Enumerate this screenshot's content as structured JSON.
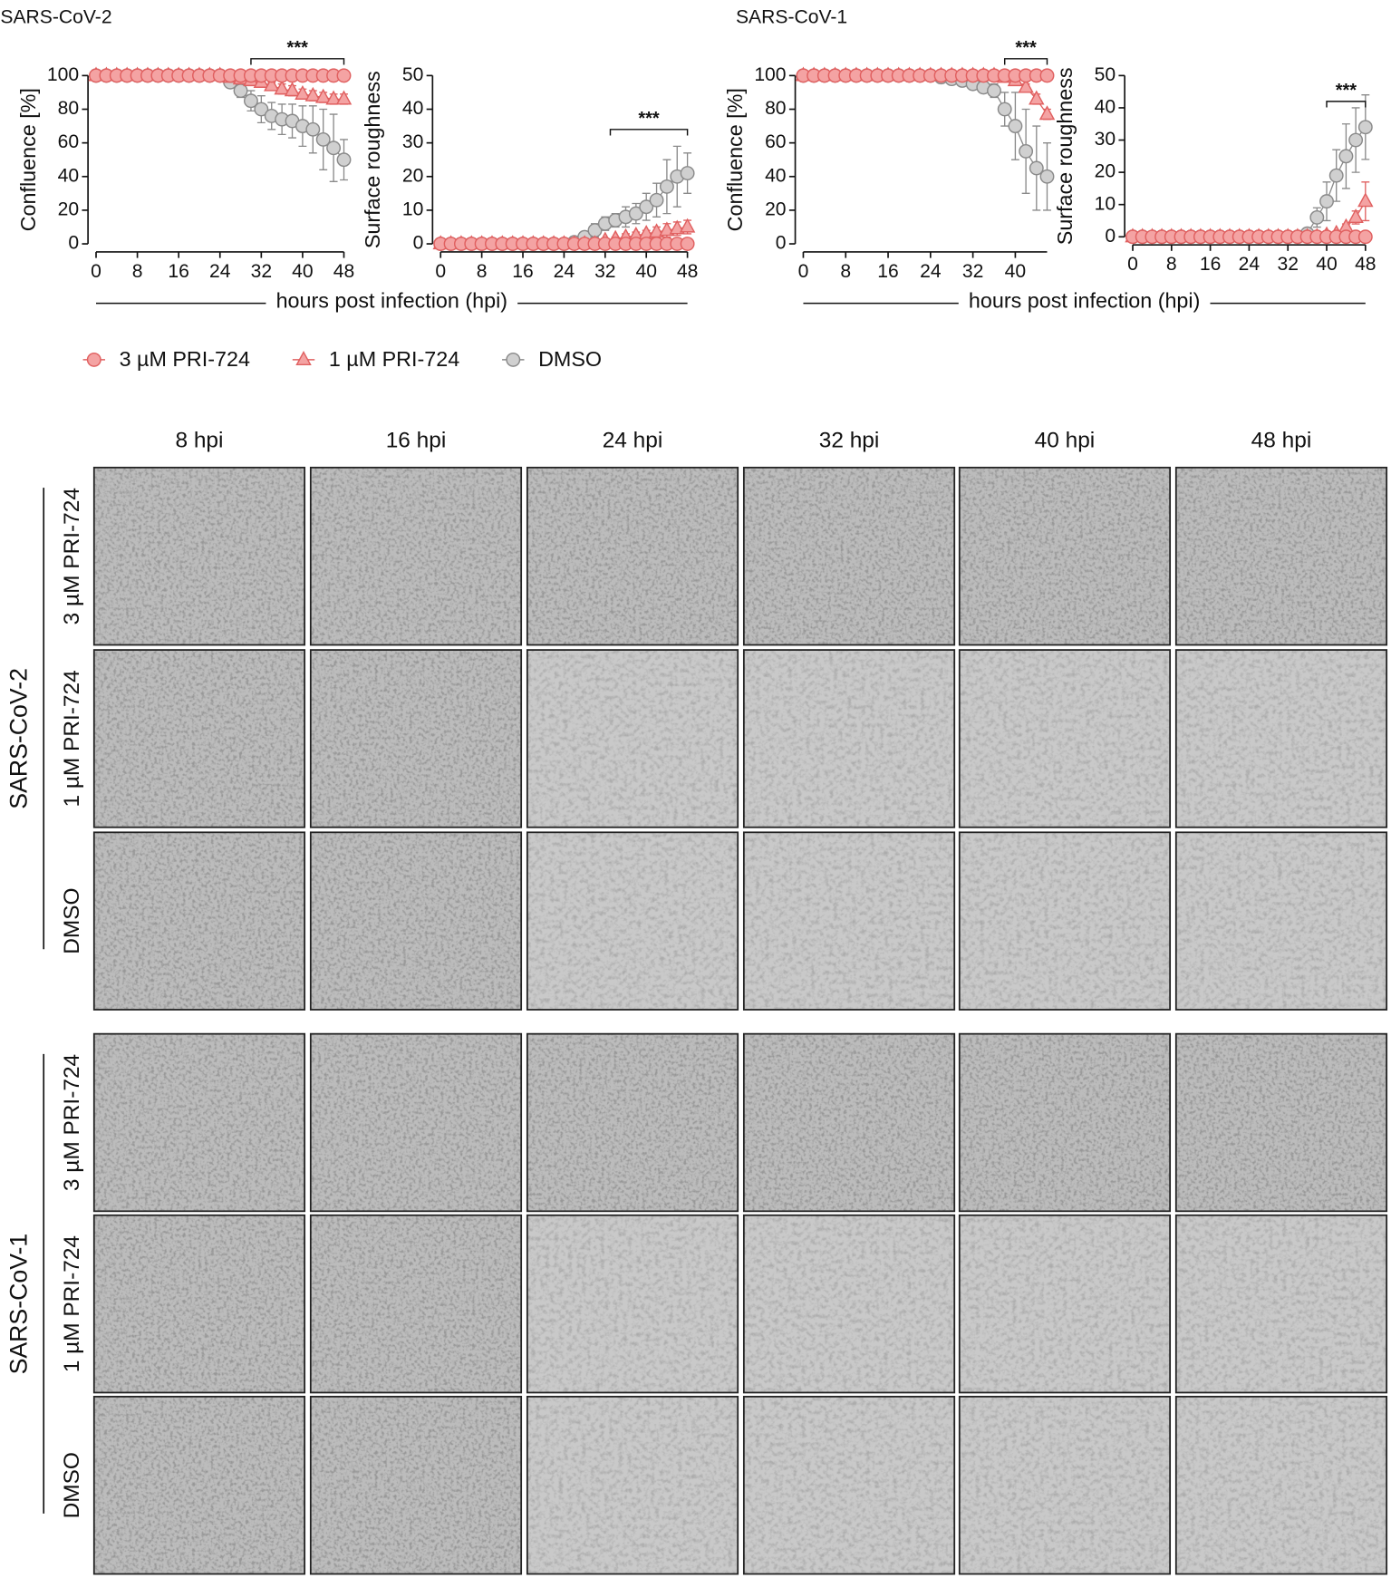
{
  "chart_data": [
    {
      "type": "line",
      "title": "SARS-CoV-2",
      "ylabel": "Confluence [%]",
      "xlabel": "hours post infection (hpi)",
      "xlim": [
        0,
        48
      ],
      "xticks": [
        0,
        8,
        16,
        24,
        32,
        40,
        48
      ],
      "ylim": [
        0,
        100
      ],
      "yticks": [
        0,
        20,
        40,
        60,
        80,
        100
      ],
      "x": [
        0,
        2,
        4,
        6,
        8,
        10,
        12,
        14,
        16,
        18,
        20,
        22,
        24,
        26,
        28,
        30,
        32,
        34,
        36,
        38,
        40,
        42,
        44,
        46,
        48
      ],
      "series": [
        {
          "values": [
            100,
            100,
            100,
            100,
            100,
            100,
            100,
            100,
            100,
            100,
            100,
            100,
            100,
            100,
            100,
            100,
            100,
            100,
            100,
            100,
            100,
            100,
            100,
            100,
            100
          ]
        },
        {
          "values": [
            100,
            100,
            100,
            100,
            100,
            100,
            100,
            100,
            100,
            100,
            100,
            100,
            100,
            99,
            98,
            97,
            96,
            94,
            92,
            91,
            89,
            88,
            87,
            86,
            86
          ],
          "errors": [
            0,
            0,
            0,
            0,
            0,
            0,
            0,
            0,
            0,
            0,
            0,
            0,
            0,
            1,
            1,
            2,
            2,
            2,
            3,
            3,
            3,
            3,
            3,
            3,
            3
          ]
        },
        {
          "values": [
            100,
            100,
            100,
            100,
            100,
            100,
            100,
            100,
            100,
            100,
            100,
            100,
            100,
            96,
            91,
            85,
            80,
            76,
            74,
            73,
            70,
            68,
            62,
            57,
            50
          ],
          "errors": [
            0,
            0,
            0,
            0,
            0,
            0,
            0,
            0,
            0,
            0,
            0,
            0,
            0,
            2,
            4,
            6,
            8,
            8,
            9,
            10,
            12,
            14,
            18,
            20,
            12
          ]
        }
      ],
      "bracket": {
        "label": "***",
        "x": [
          30,
          48
        ],
        "y": 110
      }
    },
    {
      "type": "line",
      "ylabel": "Surface roughness",
      "xlim": [
        0,
        48
      ],
      "xticks": [
        0,
        8,
        16,
        24,
        32,
        40,
        48
      ],
      "ylim": [
        0,
        50
      ],
      "yticks": [
        0,
        10,
        20,
        30,
        40,
        50
      ],
      "x": [
        0,
        2,
        4,
        6,
        8,
        10,
        12,
        14,
        16,
        18,
        20,
        22,
        24,
        26,
        28,
        30,
        32,
        34,
        36,
        38,
        40,
        42,
        44,
        46,
        48
      ],
      "series": [
        {
          "values": [
            0,
            0,
            0,
            0,
            0,
            0,
            0,
            0,
            0,
            0,
            0,
            0,
            0,
            0,
            0,
            0,
            0,
            0,
            0,
            0,
            0,
            0,
            0,
            0,
            0
          ]
        },
        {
          "values": [
            0,
            0,
            0,
            0,
            0,
            0,
            0,
            0,
            0,
            0,
            0,
            0,
            0,
            0,
            0,
            0,
            1,
            1.5,
            2,
            2.5,
            3,
            3.5,
            4,
            4.5,
            5
          ],
          "errors": [
            0,
            0,
            0,
            0,
            0,
            0,
            0,
            0,
            0,
            0,
            0,
            0,
            0,
            0,
            0,
            0,
            0.5,
            0.5,
            1,
            1,
            1,
            1.5,
            2,
            2,
            2
          ]
        },
        {
          "values": [
            0,
            0,
            0,
            0,
            0,
            0,
            0,
            0,
            0,
            0,
            0,
            0,
            0,
            0.5,
            2,
            4,
            6,
            7,
            8,
            9,
            11,
            13,
            17,
            20,
            21
          ],
          "errors": [
            0,
            0,
            0,
            0,
            0,
            0,
            0,
            0,
            0,
            0,
            0,
            0,
            0,
            0.3,
            1,
            2,
            2,
            2,
            3,
            3,
            4,
            5,
            8,
            9,
            6
          ]
        }
      ],
      "bracket": {
        "label": "***",
        "x": [
          33,
          48
        ],
        "y": 34
      }
    },
    {
      "type": "line",
      "title": "SARS-CoV-1",
      "ylabel": "Confluence [%]",
      "xlabel": "hours post infection (hpi)",
      "xlim": [
        0,
        46
      ],
      "xticks": [
        0,
        8,
        16,
        24,
        32,
        40
      ],
      "ylim": [
        0,
        100
      ],
      "yticks": [
        0,
        20,
        40,
        60,
        80,
        100
      ],
      "x": [
        0,
        2,
        4,
        6,
        8,
        10,
        12,
        14,
        16,
        18,
        20,
        22,
        24,
        26,
        28,
        30,
        32,
        34,
        36,
        38,
        40,
        42,
        44,
        46
      ],
      "series": [
        {
          "values": [
            100,
            100,
            100,
            100,
            100,
            100,
            100,
            100,
            100,
            100,
            100,
            100,
            100,
            100,
            100,
            100,
            100,
            100,
            100,
            100,
            100,
            100,
            100,
            100
          ]
        },
        {
          "values": [
            100,
            100,
            100,
            100,
            100,
            100,
            100,
            100,
            100,
            100,
            100,
            100,
            100,
            100,
            100,
            100,
            100,
            100,
            100,
            99,
            97,
            93,
            86,
            77
          ],
          "errors": [
            0,
            0,
            0,
            0,
            0,
            0,
            0,
            0,
            0,
            0,
            0,
            0,
            0,
            0,
            0,
            0,
            0,
            0,
            0,
            1,
            1,
            2,
            3,
            3
          ]
        },
        {
          "values": [
            100,
            100,
            100,
            100,
            100,
            100,
            100,
            100,
            100,
            100,
            100,
            100,
            100,
            99,
            98,
            97,
            95,
            93,
            91,
            80,
            70,
            55,
            45,
            40
          ],
          "errors": [
            0,
            0,
            0,
            0,
            0,
            0,
            0,
            0,
            0,
            0,
            0,
            0,
            0,
            1,
            1,
            2,
            2,
            3,
            4,
            10,
            20,
            25,
            25,
            20
          ]
        }
      ],
      "bracket": {
        "label": "***",
        "x": [
          38,
          46
        ],
        "y": 110
      }
    },
    {
      "type": "line",
      "ylabel": "Surface roughness",
      "xlim": [
        0,
        48
      ],
      "xticks": [
        0,
        8,
        16,
        24,
        32,
        40,
        48
      ],
      "ylim": [
        0,
        50
      ],
      "yticks": [
        0,
        10,
        20,
        30,
        40,
        50
      ],
      "x": [
        0,
        2,
        4,
        6,
        8,
        10,
        12,
        14,
        16,
        18,
        20,
        22,
        24,
        26,
        28,
        30,
        32,
        34,
        36,
        38,
        40,
        42,
        44,
        46,
        48
      ],
      "series": [
        {
          "values": [
            0,
            0,
            0,
            0,
            0,
            0,
            0,
            0,
            0,
            0,
            0,
            0,
            0,
            0,
            0,
            0,
            0,
            0,
            0,
            0,
            0,
            0,
            0,
            0,
            0
          ]
        },
        {
          "values": [
            0,
            0,
            0,
            0,
            0,
            0,
            0,
            0,
            0,
            0,
            0,
            0,
            0,
            0,
            0,
            0,
            0,
            0,
            0,
            0,
            0.5,
            1,
            3,
            6,
            11
          ],
          "errors": [
            0,
            0,
            0,
            0,
            0,
            0,
            0,
            0,
            0,
            0,
            0,
            0,
            0,
            0,
            0,
            0,
            0,
            0,
            0,
            0,
            0.3,
            0.5,
            1,
            2,
            6
          ]
        },
        {
          "values": [
            0,
            0,
            0,
            0,
            0,
            0,
            0,
            0,
            0,
            0,
            0,
            0,
            0,
            0,
            0,
            0,
            0,
            0,
            1,
            6,
            11,
            19,
            25,
            30,
            34
          ],
          "errors": [
            0,
            0,
            0,
            0,
            0,
            0,
            0,
            0,
            0,
            0,
            0,
            0,
            0,
            0,
            0,
            0,
            0,
            0,
            0.5,
            3,
            6,
            8,
            10,
            10,
            10
          ]
        }
      ],
      "bracket": {
        "label": "***",
        "x": [
          40,
          48
        ],
        "y": 42
      }
    }
  ],
  "legend": [
    {
      "name": "3 µM PRI-724",
      "color": "#f4a3a3",
      "edge": "#e06060",
      "marker": "circle"
    },
    {
      "name": "1 µM PRI-724",
      "color": "#f4a3a3",
      "edge": "#e06060",
      "marker": "triangle"
    },
    {
      "name": "DMSO",
      "color": "#d0d0d0",
      "edge": "#8a8a8a",
      "marker": "circle"
    }
  ],
  "micrographs": {
    "columns": [
      "8 hpi",
      "16 hpi",
      "24 hpi",
      "32 hpi",
      "40 hpi",
      "48 hpi"
    ],
    "groups": [
      {
        "label": "SARS-CoV-2",
        "rows": [
          "3 µM PRI-724",
          "1 µM PRI-724",
          "DMSO"
        ]
      },
      {
        "label": "SARS-CoV-1",
        "rows": [
          "3 µM PRI-724",
          "1 µM PRI-724",
          "DMSO"
        ]
      }
    ]
  }
}
